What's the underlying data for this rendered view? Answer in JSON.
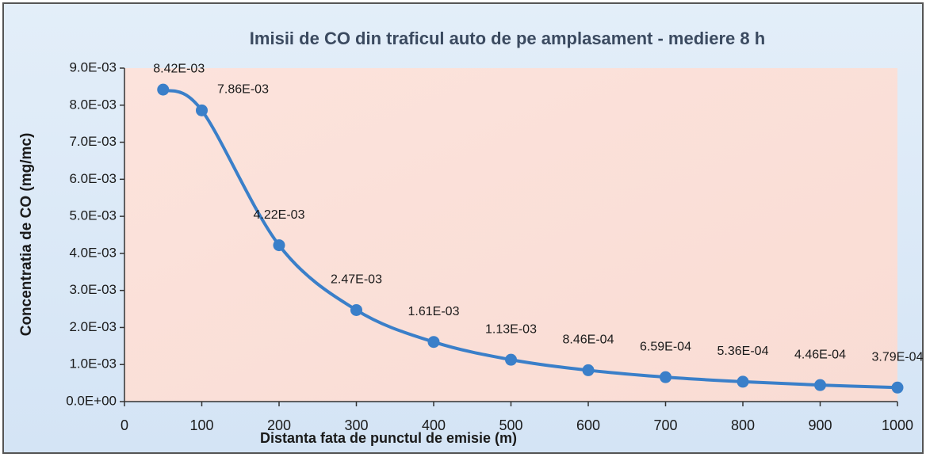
{
  "chart_data": {
    "type": "line",
    "title": "Imisii de CO din traficul auto de pe amplasament - mediere 8 h",
    "xlabel": "Distanta fata de punctul de emisie (m)",
    "ylabel": "Concentratia de CO (mg/mc)",
    "x": [
      50,
      100,
      200,
      300,
      400,
      500,
      600,
      700,
      800,
      900,
      1000
    ],
    "series": [
      {
        "name": "CO",
        "color": "#3a7fc9",
        "values": [
          0.00842,
          0.00786,
          0.00422,
          0.00247,
          0.00161,
          0.00113,
          0.000846,
          0.000659,
          0.000536,
          0.000446,
          0.000379
        ],
        "value_labels": [
          "8.42E-03",
          "7.86E-03",
          "4.22E-03",
          "2.47E-03",
          "1.61E-03",
          "1.13E-03",
          "8.46E-04",
          "6.59E-04",
          "5.36E-04",
          "4.46E-04",
          "3.79E-04"
        ]
      }
    ],
    "xlim": [
      0,
      1000
    ],
    "xticks": [
      0,
      100,
      200,
      300,
      400,
      500,
      600,
      700,
      800,
      900,
      1000
    ],
    "ylim": [
      0,
      0.009
    ],
    "yticks": [
      {
        "value": 0,
        "label": "0.0E+00"
      },
      {
        "value": 0.001,
        "label": "1.0E-03"
      },
      {
        "value": 0.002,
        "label": "2.0E-03"
      },
      {
        "value": 0.003,
        "label": "3.0E-03"
      },
      {
        "value": 0.004,
        "label": "4.0E-03"
      },
      {
        "value": 0.005,
        "label": "5.0E-03"
      },
      {
        "value": 0.006,
        "label": "6.0E-03"
      },
      {
        "value": 0.007,
        "label": "7.0E-03"
      },
      {
        "value": 0.008,
        "label": "8.0E-03"
      },
      {
        "value": 0.009,
        "label": "9.0E-03"
      }
    ]
  }
}
